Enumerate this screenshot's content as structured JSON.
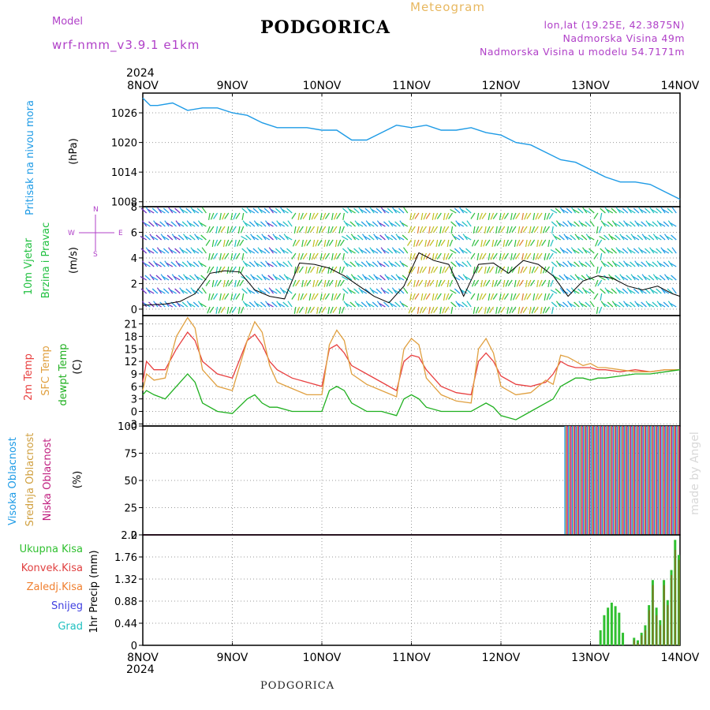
{
  "header": {
    "model_label": "Model",
    "model_version": "wrf-nmm_v3.9.1 e1km",
    "station": "PODGORICA",
    "product": "Meteogram",
    "coords": "lon,lat (19.25E, 42.3875N)",
    "elevation": "Nadmorska Visina 49m",
    "model_elevation": "Nadmorska Visina u modelu 54.7171m"
  },
  "footer": {
    "station": "PODGORICA",
    "credit": "made by Angel"
  },
  "time_axis": {
    "year": "2024",
    "labels": [
      "8NOV",
      "9NOV",
      "10NOV",
      "11NOV",
      "12NOV",
      "13NOV",
      "14NOV"
    ]
  },
  "panels": {
    "pressure": {
      "label": "Pritisak na nivou mora",
      "unit": "(hPa)"
    },
    "wind": {
      "label1": "10m Vjetar",
      "label2": "Brzina i Pravac",
      "unit": "(m/s)",
      "compass": {
        "n": "N",
        "s": "S",
        "e": "E",
        "w": "W"
      }
    },
    "temp": {
      "label1": "2m Temp",
      "label2": "SFC Temp",
      "label3": "dewpt Temp",
      "unit": "(C)"
    },
    "cloud": {
      "label1": "Visoka Oblacnost",
      "label2": "Srednja Oblacnost",
      "label3": "Niska Oblacnost",
      "unit": "(%)"
    },
    "precip": {
      "label1": "Ukupna Kisa",
      "label2": "Konvek.Kisa",
      "label3": "Zaledj.Kisa",
      "label4": "Snijeg",
      "label5": "Grad",
      "unit": "1hr Precip (mm)"
    }
  },
  "colors": {
    "pressure": "#1e9be6",
    "t2m": "#e84040",
    "tsfc": "#e0a040",
    "dewpt": "#20b020",
    "wind_speed": "#000000",
    "gust": "#e04040",
    "cloud_high": "#1e9be6",
    "cloud_mid": "#d0a040",
    "cloud_low": "#c02080",
    "rain_total": "#30c030",
    "rain_conv": "#e04040",
    "rain_frozen": "#f08030",
    "snow": "#4040e0",
    "hail": "#20c0c0",
    "label_pressure": "#1e9be6",
    "label_wind": "#20c040",
    "label_compass": "#b040c8"
  },
  "chart_data": [
    {
      "type": "line",
      "title": "Pritisak na nivou mora",
      "ylabel": "(hPa)",
      "ylim": [
        1007,
        1030
      ],
      "yticks": [
        1008,
        1014,
        1020,
        1026
      ],
      "x": [
        0,
        2,
        4,
        8,
        12,
        16,
        20,
        24,
        28,
        32,
        36,
        40,
        44,
        48,
        52,
        56,
        60,
        64,
        68,
        72,
        76,
        80,
        84,
        88,
        92,
        96,
        100,
        104,
        108,
        112,
        116,
        120,
        124,
        128,
        132,
        136,
        140,
        144
      ],
      "series": [
        {
          "values": [
            1029,
            1027.5,
            1027.5,
            1028,
            1026.5,
            1027,
            1027,
            1026,
            1025.5,
            1024,
            1023,
            1023,
            1023,
            1022.5,
            1022.5,
            1020.5,
            1020.5,
            1022,
            1023.5,
            1023,
            1023.5,
            1022.5,
            1022.5,
            1023,
            1022,
            1021.5,
            1020,
            1019.5,
            1018,
            1016.5,
            1016,
            1014.5,
            1013,
            1012,
            1012,
            1011.5,
            1010,
            1008.5
          ]
        }
      ]
    },
    {
      "type": "line",
      "title": "10m Vjetar Brzina i Pravac",
      "ylabel": "(m/s)",
      "ylim": [
        -0.5,
        8
      ],
      "yticks": [
        0,
        2,
        4,
        6,
        8
      ],
      "x": [
        0,
        6,
        10,
        14,
        18,
        22,
        26,
        30,
        34,
        38,
        42,
        46,
        50,
        54,
        58,
        62,
        66,
        70,
        74,
        78,
        82,
        86,
        90,
        94,
        98,
        102,
        106,
        110,
        114,
        118,
        122,
        126,
        130,
        134,
        138,
        142,
        144
      ],
      "series": [
        {
          "name": "speed",
          "values": [
            0.3,
            0.4,
            0.6,
            1.2,
            2.8,
            3,
            2.9,
            1.5,
            1,
            0.8,
            3.6,
            3.5,
            3.2,
            2.6,
            1.8,
            1,
            0.5,
            1.8,
            4.4,
            3.8,
            3.5,
            1,
            3.5,
            3.6,
            2.8,
            3.8,
            3.5,
            2.6,
            1,
            2.2,
            2.6,
            2.4,
            1.8,
            1.5,
            1.8,
            1.2,
            1
          ]
        }
      ]
    },
    {
      "type": "line",
      "title": "Temperatura",
      "ylabel": "(C)",
      "ylim": [
        -3.5,
        23
      ],
      "yticks": [
        -3,
        0,
        3,
        6,
        9,
        12,
        15,
        18,
        21
      ],
      "x": [
        0,
        1,
        3,
        6,
        9,
        12,
        14,
        16,
        20,
        24,
        28,
        30,
        32,
        34,
        36,
        40,
        44,
        48,
        50,
        52,
        54,
        56,
        60,
        64,
        68,
        70,
        72,
        74,
        76,
        80,
        84,
        88,
        90,
        92,
        94,
        96,
        100,
        104,
        108,
        110,
        112,
        114,
        116,
        118,
        120,
        122,
        124,
        128,
        132,
        136,
        140,
        144
      ],
      "series": [
        {
          "name": "2m Temp",
          "values": [
            7,
            12,
            10,
            10,
            15,
            19,
            17,
            12,
            9,
            8,
            17,
            18.5,
            16,
            12,
            10,
            8,
            7,
            6,
            15,
            16,
            14,
            11,
            9,
            7,
            5,
            12,
            13.5,
            13,
            10,
            6,
            4.5,
            4,
            12,
            14,
            12,
            8.5,
            6.5,
            6,
            7,
            9,
            12,
            11,
            10.5,
            10.5,
            10.5,
            10,
            10,
            9.5,
            10,
            9.5,
            10,
            10
          ]
        },
        {
          "name": "SFC Temp",
          "values": [
            5,
            9,
            7.5,
            8,
            18,
            22.5,
            20,
            10,
            6,
            5,
            17,
            21.5,
            19,
            11,
            7,
            5.5,
            4,
            4,
            16,
            19.5,
            17,
            9,
            6.5,
            5,
            3.5,
            15,
            17.5,
            16,
            8,
            4,
            2.5,
            2,
            15,
            17.5,
            14,
            6,
            4,
            4.5,
            7.5,
            6.5,
            13.5,
            13,
            12,
            11,
            11.5,
            10.5,
            10.5,
            10,
            9.5,
            9.5,
            10,
            10
          ]
        },
        {
          "name": "dewpt Temp",
          "values": [
            4,
            5,
            4,
            3,
            6,
            9,
            7,
            2,
            0,
            -0.5,
            3,
            4,
            2,
            1,
            1,
            0,
            0,
            0,
            5,
            6,
            5,
            2,
            0,
            0,
            -1,
            3,
            4,
            3,
            1,
            0,
            0,
            0,
            1,
            2,
            1,
            -1,
            -2,
            0,
            2,
            3,
            6,
            7,
            8,
            8,
            7.5,
            8,
            8,
            8.5,
            9,
            9,
            9.5,
            10
          ]
        }
      ]
    },
    {
      "type": "bar",
      "title": "Oblacnost",
      "ylabel": "(%)",
      "ylim": [
        0,
        100
      ],
      "yticks": [
        0,
        25,
        50,
        75,
        100
      ],
      "x": "hours 0-144",
      "series": [
        {
          "name": "Visoka Oblacnost",
          "note": "100% from hour 113 to 144, 0 before"
        },
        {
          "name": "Srednja Oblacnost",
          "note": "100% from hour 113 to 144, 0 before"
        },
        {
          "name": "Niska Oblacnost",
          "note": "100% from hour 113 to 144, 0 before"
        }
      ]
    },
    {
      "type": "bar",
      "title": "1hr Precip",
      "ylabel": "1hr Precip (mm)",
      "ylim": [
        0,
        2.2
      ],
      "yticks": [
        0,
        0.44,
        0.88,
        1.32,
        1.76,
        2.2
      ],
      "x": [
        123,
        124,
        125,
        126,
        127,
        128,
        129,
        132,
        133,
        134,
        135,
        136,
        137,
        138,
        139,
        140,
        141,
        142,
        143,
        144
      ],
      "series": [
        {
          "name": "Ukupna Kisa",
          "values": [
            0.3,
            0.6,
            0.75,
            0.85,
            0.78,
            0.65,
            0.25,
            0.15,
            0.1,
            0.25,
            0.4,
            0.8,
            1.3,
            0.75,
            0.5,
            1.3,
            0.9,
            1.5,
            2.1,
            1.8
          ]
        },
        {
          "name": "Konvek.Kisa",
          "values": [
            0,
            0,
            0,
            0,
            0,
            0,
            0,
            0.1,
            0.05,
            0.2,
            0.3,
            0.7,
            1.2,
            0.6,
            0.4,
            1.2,
            0.8,
            1.4,
            1.9,
            1.7
          ]
        }
      ]
    }
  ]
}
